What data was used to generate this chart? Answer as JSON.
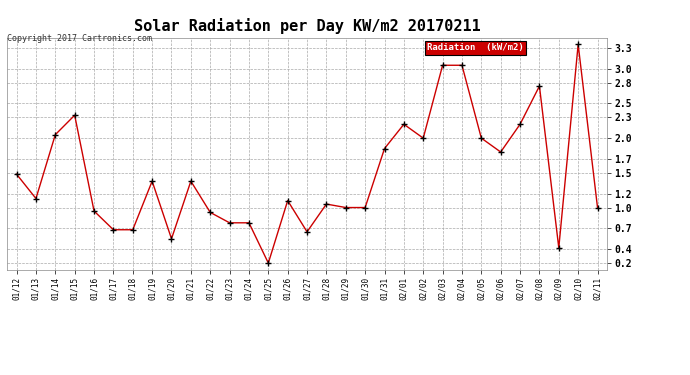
{
  "title": "Solar Radiation per Day KW/m2 20170211",
  "copyright": "Copyright 2017 Cartronics.com",
  "legend_label": "Radiation  (kW/m2)",
  "dates": [
    "01/12",
    "01/13",
    "01/14",
    "01/15",
    "01/16",
    "01/17",
    "01/18",
    "01/19",
    "01/20",
    "01/21",
    "01/22",
    "01/23",
    "01/24",
    "01/25",
    "01/26",
    "01/27",
    "01/28",
    "01/29",
    "01/30",
    "01/31",
    "02/01",
    "02/02",
    "02/03",
    "02/04",
    "02/05",
    "02/06",
    "02/07",
    "02/08",
    "02/09",
    "02/10",
    "02/11"
  ],
  "values": [
    1.48,
    1.13,
    2.05,
    2.33,
    0.95,
    0.68,
    0.68,
    1.38,
    0.55,
    1.38,
    0.93,
    0.78,
    0.78,
    0.2,
    1.1,
    0.65,
    1.05,
    1.0,
    1.0,
    1.85,
    2.2,
    2.0,
    3.05,
    3.05,
    2.0,
    1.8,
    2.2,
    2.75,
    0.42,
    3.35,
    1.0
  ],
  "line_color": "#cc0000",
  "marker_color": "#000000",
  "bg_color": "#ffffff",
  "grid_color": "#aaaaaa",
  "title_fontsize": 11,
  "copyright_fontsize": 6,
  "tick_fontsize": 7,
  "xtick_fontsize": 5.5,
  "legend_bg": "#cc0000",
  "legend_text_color": "#ffffff",
  "yticks": [
    0.2,
    0.4,
    0.7,
    1.0,
    1.2,
    1.5,
    1.7,
    2.0,
    2.3,
    2.5,
    2.8,
    3.0,
    3.3
  ],
  "ylim": [
    0.1,
    3.45
  ]
}
